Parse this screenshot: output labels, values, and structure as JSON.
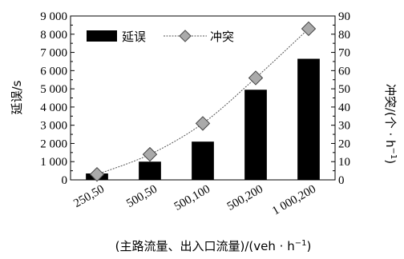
{
  "chart_data": {
    "type": "bar+line",
    "categories": [
      "250,50",
      "500,50",
      "500,100",
      "500,200",
      "1 000,200"
    ],
    "xlabel_main": "(主路流量、出入口流量)/(veh · h",
    "xlabel_sup": "−1",
    "xlabel_end": ")",
    "y_left": {
      "label": "延误/s",
      "lim": [
        0,
        9000
      ],
      "ticks": [
        0,
        1000,
        2000,
        3000,
        4000,
        5000,
        6000,
        7000,
        8000,
        9000
      ],
      "tick_labels": [
        "0",
        "1 000",
        "2 000",
        "3 000",
        "4 000",
        "5 000",
        "6 000",
        "7 000",
        "8 000",
        "9 000"
      ]
    },
    "y_right": {
      "label_main": "冲突/(个 · h",
      "label_sup": "−1",
      "label_end": ")",
      "lim": [
        0,
        90
      ],
      "ticks": [
        0,
        10,
        20,
        30,
        40,
        50,
        60,
        70,
        80,
        90
      ],
      "tick_labels": [
        "0",
        "10",
        "20",
        "30",
        "40",
        "50",
        "60",
        "70",
        "80",
        "90"
      ]
    },
    "series": [
      {
        "name": "延误",
        "kind": "bar",
        "axis": "left",
        "color": "#000000",
        "values": [
          350,
          1000,
          2100,
          4950,
          6650
        ]
      },
      {
        "name": "冲突",
        "kind": "line",
        "axis": "right",
        "color": "#555555",
        "marker": "diamond",
        "values": [
          3,
          14,
          31,
          56,
          83
        ]
      }
    ],
    "legend_placement": "top-left",
    "grid": false
  }
}
